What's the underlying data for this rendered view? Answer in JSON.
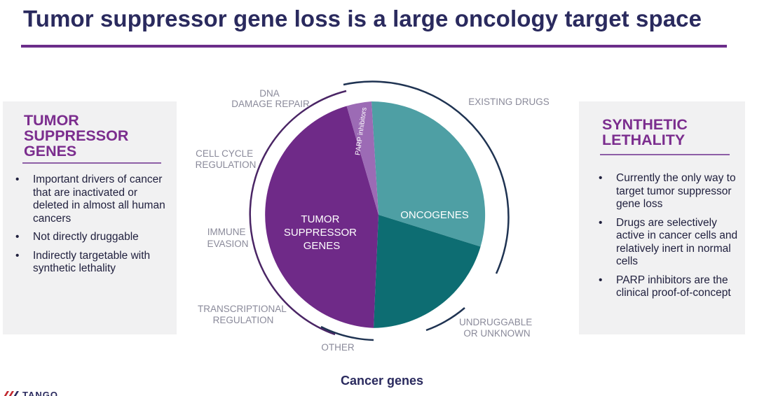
{
  "title": "Tumor suppressor gene loss is a large oncology target space",
  "left_panel": {
    "heading": "TUMOR SUPPRESSOR GENES",
    "bullets": [
      "Important drivers of cancer that are inactivated or deleted in almost all human cancers",
      "Not directly druggable",
      "Indirectly targetable with synthetic lethality"
    ]
  },
  "right_panel": {
    "heading": "SYNTHETIC LETHALITY",
    "bullets": [
      "Currently the only way to target tumor suppressor gene loss",
      "Drugs are selectively active in cancer cells and relatively inert in normal cells",
      "PARP inhibitors are the clinical proof-of-concept"
    ]
  },
  "diagram": {
    "segments": [
      {
        "label": "ONCOGENES",
        "color": "#4e9fa4"
      },
      {
        "label": "",
        "color": "#0d6d72"
      },
      {
        "label": "TUMOR SUPPRESSOR GENES",
        "color": "#6f2a88"
      },
      {
        "label": "PARP inhibitors",
        "color": "#9c6bb5"
      }
    ],
    "outer_labels": [
      "DNA DAMAGE REPAIR",
      "CELL CYCLE REGULATION",
      "IMMUNE EVASION",
      "TRANSCRIPTIONAL REGULATION",
      "OTHER",
      "EXISTING DRUGS",
      "UNDRUGGABLE OR UNKNOWN"
    ],
    "caption": "Cancer genes"
  },
  "logo": {
    "text": "TANGO"
  }
}
